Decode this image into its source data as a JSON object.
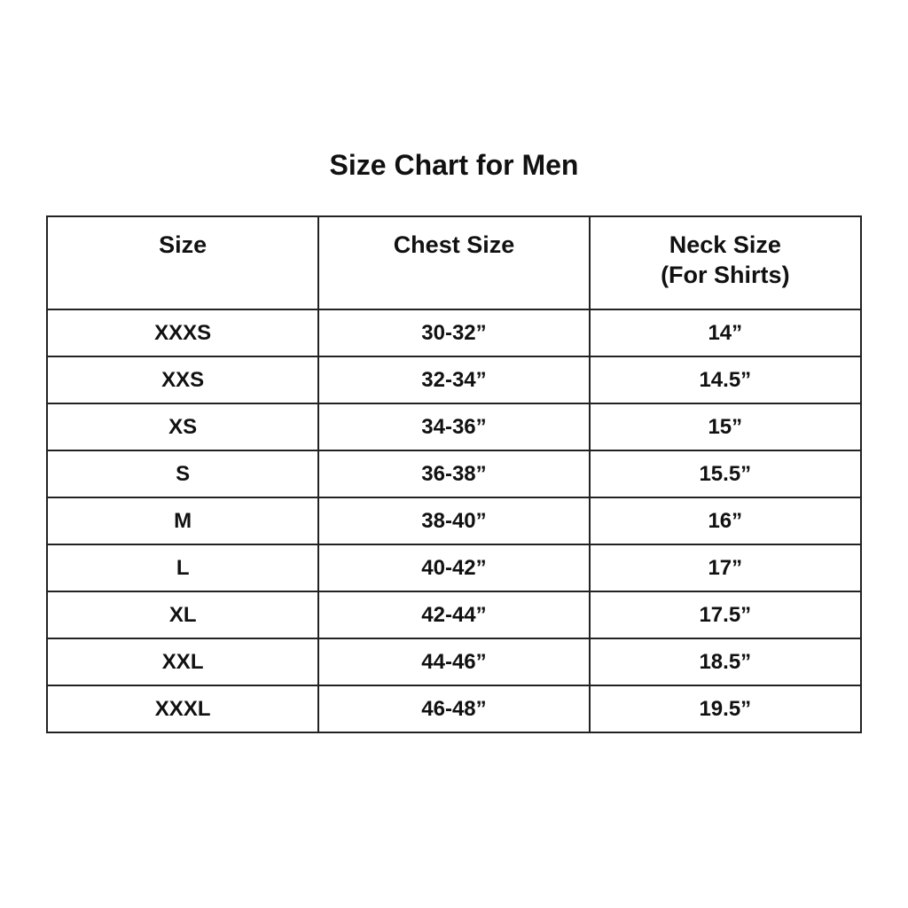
{
  "title": "Size Chart for Men",
  "columns": [
    "Size",
    "Chest Size",
    "Neck Size",
    "(For Shirts)"
  ],
  "rows": [
    [
      "XXXS",
      "30-32”",
      "14”"
    ],
    [
      "XXS",
      "32-34”",
      "14.5”"
    ],
    [
      "XS",
      "34-36”",
      "15”"
    ],
    [
      "S",
      "36-38”",
      "15.5”"
    ],
    [
      "M",
      "38-40”",
      "16”"
    ],
    [
      "L",
      "40-42”",
      "17”"
    ],
    [
      "XL",
      "42-44”",
      "17.5”"
    ],
    [
      "XXL",
      "44-46”",
      "18.5”"
    ],
    [
      "XXXL",
      "46-48”",
      "19.5”"
    ]
  ]
}
